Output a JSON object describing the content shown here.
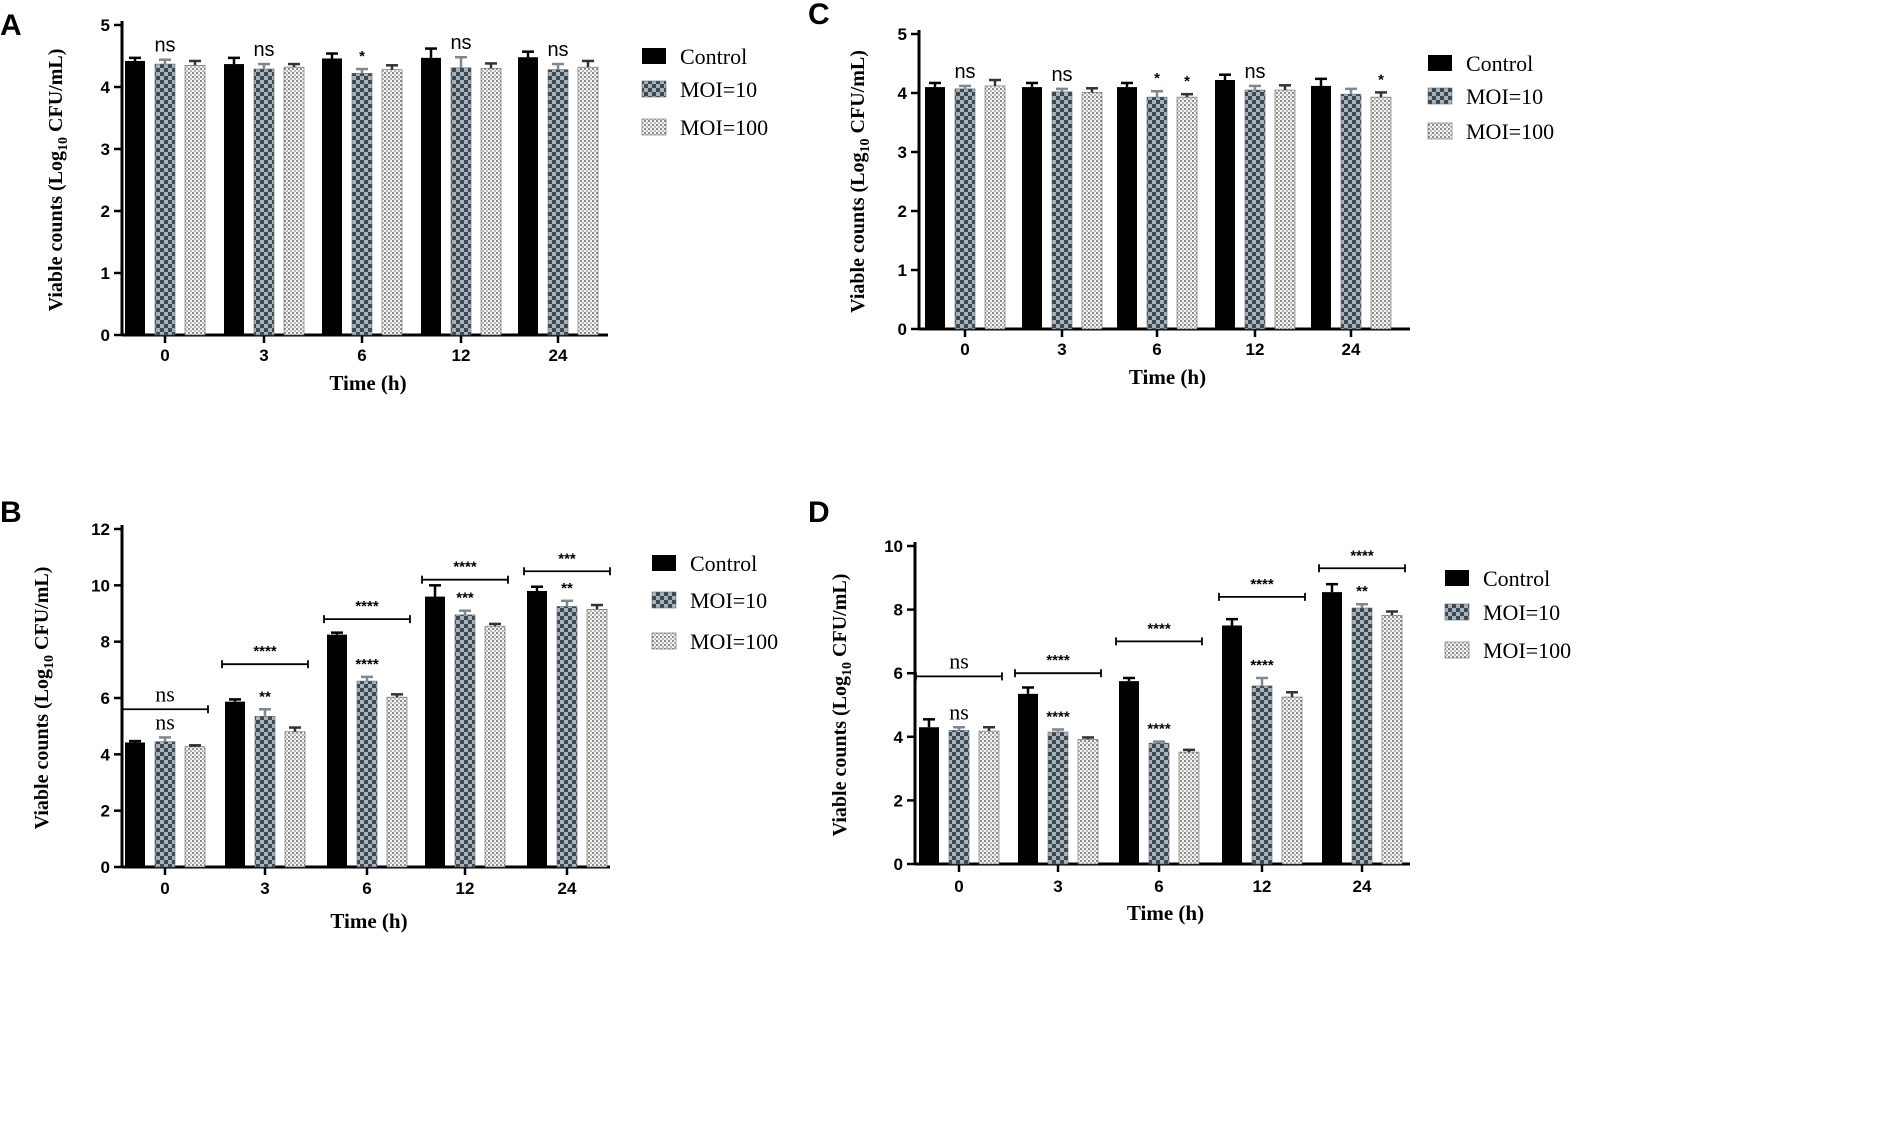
{
  "chart_data": [
    {
      "panel": "A",
      "type": "bar",
      "title": "",
      "xlabel": "Time (h)",
      "ylabel_main": "Viable counts (Log",
      "ylabel_sub": "10",
      "ylabel_tail": " CFU/mL)",
      "ylim": [
        0,
        5
      ],
      "yticks": [
        "0",
        "1",
        "2",
        "3",
        "4",
        "5"
      ],
      "categories": [
        "0",
        "3",
        "6",
        "12",
        "24"
      ],
      "series": [
        {
          "name": "Control",
          "values": [
            4.42,
            4.37,
            4.46,
            4.47,
            4.48
          ],
          "errors": [
            0.05,
            0.1,
            0.08,
            0.15,
            0.09
          ]
        },
        {
          "name": "MOI=10",
          "values": [
            4.37,
            4.29,
            4.22,
            4.31,
            4.28
          ],
          "errors": [
            0.07,
            0.08,
            0.07,
            0.17,
            0.09
          ]
        },
        {
          "name": "MOI=100",
          "values": [
            4.35,
            4.32,
            4.28,
            4.3,
            4.32
          ],
          "errors": [
            0.07,
            0.05,
            0.07,
            0.08,
            0.1
          ]
        }
      ],
      "annotations": [
        {
          "category": "0",
          "series": "MOI=10",
          "text": "ns",
          "style": "ns"
        },
        {
          "category": "3",
          "series": "MOI=10",
          "text": "ns",
          "style": "ns"
        },
        {
          "category": "6",
          "series": "MOI=10",
          "text": "*",
          "style": "star"
        },
        {
          "category": "12",
          "series": "MOI=10",
          "text": "ns",
          "style": "ns"
        },
        {
          "category": "24",
          "series": "MOI=10",
          "text": "ns",
          "style": "ns"
        }
      ],
      "brackets": []
    },
    {
      "panel": "C",
      "type": "bar",
      "title": "",
      "xlabel": "Time (h)",
      "ylabel_main": "Viable counts (Log",
      "ylabel_sub": "10",
      "ylabel_tail": " CFU/mL)",
      "ylim": [
        0,
        5
      ],
      "yticks": [
        "0",
        "1",
        "2",
        "3",
        "4",
        "5"
      ],
      "categories": [
        "0",
        "3",
        "6",
        "12",
        "24"
      ],
      "series": [
        {
          "name": "Control",
          "values": [
            4.1,
            4.1,
            4.1,
            4.22,
            4.12
          ],
          "errors": [
            0.07,
            0.07,
            0.07,
            0.09,
            0.12
          ]
        },
        {
          "name": "MOI=10",
          "values": [
            4.07,
            4.02,
            3.93,
            4.05,
            3.98
          ],
          "errors": [
            0.05,
            0.05,
            0.1,
            0.07,
            0.09
          ]
        },
        {
          "name": "MOI=100",
          "values": [
            4.12,
            4.01,
            3.93,
            4.05,
            3.93
          ],
          "errors": [
            0.1,
            0.07,
            0.05,
            0.08,
            0.08
          ]
        }
      ],
      "annotations": [
        {
          "category": "0",
          "series": "MOI=10",
          "text": "ns",
          "style": "ns"
        },
        {
          "category": "3",
          "series": "MOI=10",
          "text": "ns",
          "style": "ns"
        },
        {
          "category": "6",
          "series": "MOI=10",
          "text": "*",
          "style": "star"
        },
        {
          "category": "6",
          "series": "MOI=100",
          "text": "*",
          "style": "star"
        },
        {
          "category": "12",
          "series": "MOI=10",
          "text": "ns",
          "style": "ns"
        },
        {
          "category": "24",
          "series": "MOI=100",
          "text": "*",
          "style": "star"
        }
      ],
      "brackets": []
    },
    {
      "panel": "B",
      "type": "bar",
      "title": "",
      "xlabel": "Time (h)",
      "ylabel_main": "Viable counts (Log",
      "ylabel_sub": "10",
      "ylabel_tail": " CFU/mL)",
      "ylim": [
        0,
        12
      ],
      "yticks": [
        "0",
        "2",
        "4",
        "6",
        "8",
        "10",
        "12"
      ],
      "categories": [
        "0",
        "3",
        "6",
        "12",
        "24"
      ],
      "series": [
        {
          "name": "Control",
          "values": [
            4.42,
            5.87,
            8.25,
            9.6,
            9.8
          ],
          "errors": [
            0.05,
            0.08,
            0.07,
            0.4,
            0.15
          ]
        },
        {
          "name": "MOI=10",
          "values": [
            4.45,
            5.35,
            6.6,
            8.95,
            9.25
          ],
          "errors": [
            0.15,
            0.25,
            0.15,
            0.15,
            0.2
          ]
        },
        {
          "name": "MOI=100",
          "values": [
            4.27,
            4.8,
            6.03,
            8.55,
            9.15
          ],
          "errors": [
            0.05,
            0.15,
            0.1,
            0.08,
            0.15
          ]
        }
      ],
      "annotations": [
        {
          "category": "0",
          "series": "MOI=10",
          "text": "ns",
          "style": "ns-serif"
        },
        {
          "category": "3",
          "series": "MOI=10",
          "text": "**",
          "style": "star"
        },
        {
          "category": "6",
          "series": "MOI=10",
          "text": "****",
          "style": "star"
        },
        {
          "category": "12",
          "series": "MOI=10",
          "text": "***",
          "style": "star"
        },
        {
          "category": "24",
          "series": "MOI=10",
          "text": "**",
          "style": "star"
        }
      ],
      "brackets": [
        {
          "category": "0",
          "y": 5.6,
          "text": "ns",
          "style": "ns-serif"
        },
        {
          "category": "3",
          "y": 7.2,
          "text": "****",
          "style": "star"
        },
        {
          "category": "6",
          "y": 8.8,
          "text": "****",
          "style": "star"
        },
        {
          "category": "12",
          "y": 10.2,
          "text": "****",
          "style": "star"
        },
        {
          "category": "24",
          "y": 10.5,
          "text": "***",
          "style": "star"
        }
      ]
    },
    {
      "panel": "D",
      "type": "bar",
      "title": "",
      "xlabel": "Time (h)",
      "ylabel_main": "Viable counts (Log",
      "ylabel_sub": "10",
      "ylabel_tail": " CFU/mL)",
      "ylim": [
        0,
        10
      ],
      "yticks": [
        "0",
        "2",
        "4",
        "6",
        "8",
        "10"
      ],
      "categories": [
        "0",
        "3",
        "6",
        "12",
        "24"
      ],
      "series": [
        {
          "name": "Control",
          "values": [
            4.3,
            5.35,
            5.75,
            7.5,
            8.55
          ],
          "errors": [
            0.25,
            0.2,
            0.1,
            0.2,
            0.25
          ]
        },
        {
          "name": "MOI=10",
          "values": [
            4.2,
            4.15,
            3.8,
            5.6,
            8.05
          ],
          "errors": [
            0.1,
            0.08,
            0.05,
            0.25,
            0.12
          ]
        },
        {
          "name": "MOI=100",
          "values": [
            4.18,
            3.92,
            3.52,
            5.25,
            7.82
          ],
          "errors": [
            0.12,
            0.06,
            0.07,
            0.15,
            0.12
          ]
        }
      ],
      "annotations": [
        {
          "category": "0",
          "series": "MOI=10",
          "text": "ns",
          "style": "ns-serif"
        },
        {
          "category": "3",
          "series": "MOI=10",
          "text": "****",
          "style": "star"
        },
        {
          "category": "6",
          "series": "MOI=10",
          "text": "****",
          "style": "star"
        },
        {
          "category": "12",
          "series": "MOI=10",
          "text": "****",
          "style": "star"
        },
        {
          "category": "24",
          "series": "MOI=10",
          "text": "**",
          "style": "star"
        }
      ],
      "brackets": [
        {
          "category": "0",
          "y": 5.9,
          "text": "ns",
          "style": "ns-serif"
        },
        {
          "category": "3",
          "y": 6.0,
          "text": "****",
          "style": "star"
        },
        {
          "category": "6",
          "y": 7.0,
          "text": "****",
          "style": "star"
        },
        {
          "category": "12",
          "y": 8.4,
          "text": "****",
          "style": "star"
        },
        {
          "category": "24",
          "y": 9.3,
          "text": "****",
          "style": "star"
        }
      ]
    }
  ],
  "legend": {
    "entries": [
      "Control",
      "MOI=10",
      "MOI=100"
    ]
  },
  "colors": {
    "control": "#000000",
    "moi10_dark": "#3a4a55",
    "moi10_light": "#a7b2ba",
    "moi100_dark": "#8c8c8c",
    "moi100_light": "#f2f2f2"
  }
}
